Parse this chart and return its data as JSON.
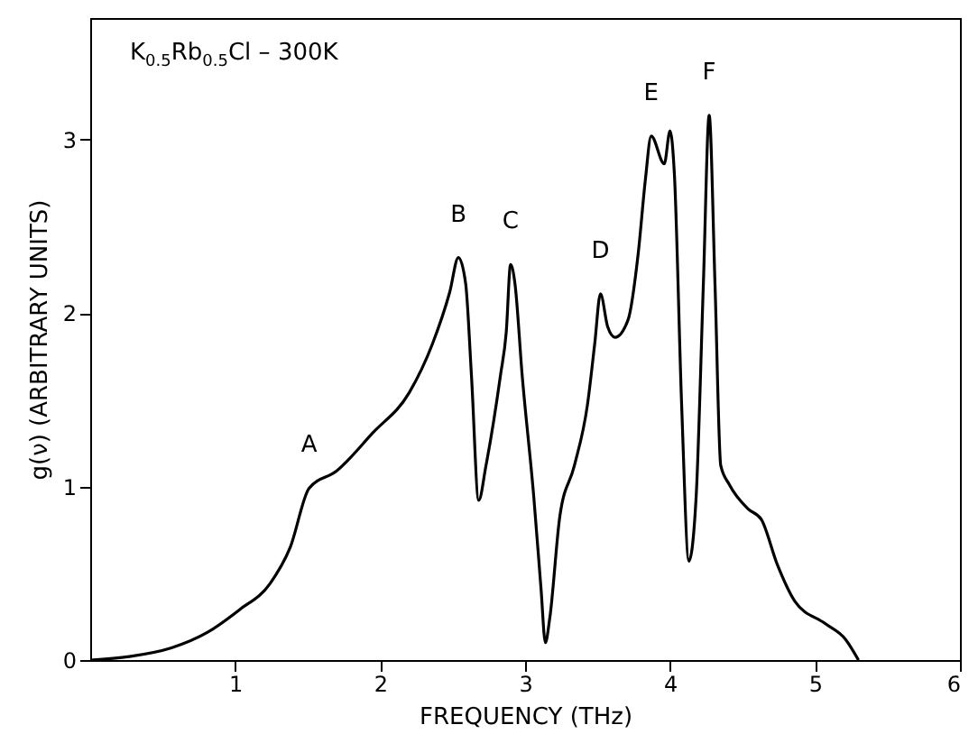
{
  "chart_data": {
    "type": "line",
    "title": "K$_{0.5}$Rb$_{0.5}$Cl – 300K",
    "xlabel": "FREQUENCY (THz)",
    "ylabel": "g(ν) (ARBITRARY UNITS)",
    "x": [
      0,
      0.27,
      0.56,
      0.81,
      1.03,
      1.24,
      1.38,
      1.51,
      1.7,
      1.95,
      2.2,
      2.36,
      2.48,
      2.54,
      2.59,
      2.63,
      2.68,
      2.73,
      2.83,
      2.87,
      2.9,
      2.93,
      2.98,
      3.06,
      3.11,
      3.14,
      3.17,
      3.24,
      3.34,
      3.43,
      3.48,
      3.52,
      3.57,
      3.62,
      3.71,
      3.78,
      3.83,
      3.87,
      3.96,
      4.0,
      4.03,
      4.08,
      4.13,
      4.18,
      4.23,
      4.27,
      4.31,
      4.35,
      4.41,
      4.54,
      4.63,
      4.74,
      4.86,
      5.07,
      5.21,
      5.3
    ],
    "series": [
      {
        "color": "#000000",
        "values": [
          0,
          0.02,
          0.07,
          0.16,
          0.29,
          0.44,
          0.65,
          0.99,
          1.09,
          1.31,
          1.54,
          1.82,
          2.12,
          2.32,
          2.17,
          1.64,
          0.92,
          1.12,
          1.64,
          1.89,
          2.28,
          2.17,
          1.64,
          0.94,
          0.41,
          0.1,
          0.24,
          0.83,
          1.12,
          1.47,
          1.82,
          2.11,
          1.92,
          1.86,
          1.96,
          2.34,
          2.77,
          3.02,
          2.86,
          3.05,
          2.8,
          1.47,
          0.57,
          0.94,
          2.17,
          3.14,
          2.17,
          1.12,
          1.01,
          0.87,
          0.81,
          0.55,
          0.34,
          0.21,
          0.12,
          0
        ]
      }
    ],
    "annotations": [
      {
        "text": "A",
        "x": 1.51,
        "y": 0.99
      },
      {
        "text": "B",
        "x": 2.54,
        "y": 2.32
      },
      {
        "text": "C",
        "x": 2.9,
        "y": 2.28
      },
      {
        "text": "D",
        "x": 3.52,
        "y": 2.11
      },
      {
        "text": "E",
        "x": 3.87,
        "y": 3.02
      },
      {
        "text": "F",
        "x": 4.27,
        "y": 3.14
      }
    ],
    "xlim": [
      0,
      6
    ],
    "ylim": [
      0,
      3.7
    ],
    "xticks": [
      1,
      2,
      3,
      4,
      5,
      6
    ],
    "yticks": [
      0,
      1,
      2,
      3
    ],
    "grid": false,
    "marker": "none",
    "line_style": "solid"
  }
}
